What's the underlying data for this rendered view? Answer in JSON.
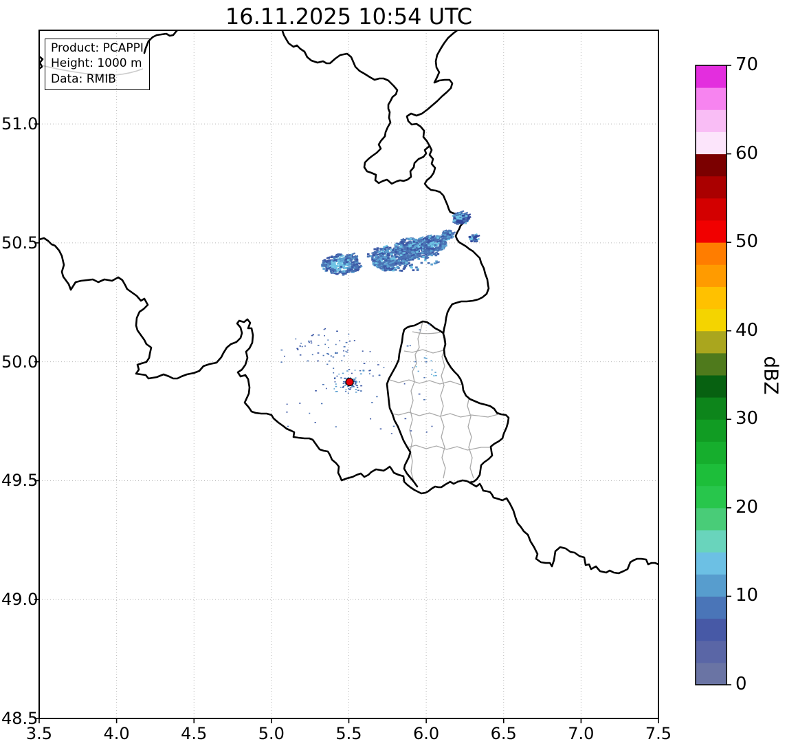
{
  "title": "16.11.2025 10:54 UTC",
  "legend": {
    "lines": [
      "Product: PCAPPI",
      "Height: 1000 m",
      "Data: RMIB"
    ]
  },
  "axes": {
    "xtick_labels": [
      "3.5",
      "4.0",
      "4.5",
      "5.0",
      "5.5",
      "6.0",
      "6.5",
      "7.0",
      "7.5"
    ],
    "xticks": [
      3.5,
      4.0,
      4.5,
      5.0,
      5.5,
      6.0,
      6.5,
      7.0,
      7.5
    ],
    "ytick_labels": [
      "48.5",
      "49.0",
      "49.5",
      "50.0",
      "50.5",
      "51.0"
    ],
    "yticks": [
      48.5,
      49.0,
      49.5,
      50.0,
      50.5,
      51.0
    ],
    "xlim": [
      3.5,
      7.5
    ],
    "ylim": [
      48.5,
      51.394
    ]
  },
  "colorbar": {
    "label": "dBZ",
    "ticks": [
      0,
      10,
      20,
      30,
      40,
      50,
      60,
      70
    ],
    "vmin": 0,
    "vmax": 70,
    "band_step": 2.5,
    "colors_bottom_to_top": [
      "#6a74a4",
      "#5a66a6",
      "#4759a6",
      "#4a75b8",
      "#579dce",
      "#6cc0e4",
      "#69d4bc",
      "#49cc78",
      "#28c64c",
      "#1dbe3a",
      "#16ae2d",
      "#119c23",
      "#0d851b",
      "#076111",
      "#4f7a1c",
      "#aaa61e",
      "#f4d400",
      "#ffc100",
      "#ff9b00",
      "#ff7d00",
      "#f10000",
      "#d30000",
      "#aa0000",
      "#7b0000",
      "#fce5fb",
      "#f9bdf5",
      "#f784f0",
      "#e32ede"
    ]
  },
  "chart_data": {
    "type": "heatmap",
    "title": "16.11.2025 10:54 UTC",
    "product": "PCAPPI",
    "height_m": 1000,
    "data_source": "RMIB",
    "units": "dBZ",
    "lon_range": [
      3.5,
      7.5
    ],
    "lat_range": [
      48.5,
      51.394
    ],
    "station_marker": {
      "lon": 5.505,
      "lat": 49.915,
      "color": "#e8000b",
      "edge": "#000000",
      "radius_px": 5.5
    },
    "echo_clusters": [
      {
        "lon": 5.444,
        "lat": 50.413,
        "rlon": 0.125,
        "rlat": 0.044,
        "n": 280,
        "palette": "main",
        "cores": [
          {
            "dx": -0.1,
            "dy": 0.1,
            "r": 0.45,
            "color": "#6fc4e4"
          }
        ]
      },
      {
        "lon": 5.755,
        "lat": 50.436,
        "rlon": 0.115,
        "rlat": 0.05,
        "n": 320,
        "palette": "main",
        "cores": [
          {
            "dx": -0.2,
            "dy": 0.0,
            "r": 0.4,
            "color": "#5b9fd0"
          }
        ]
      },
      {
        "lon": 5.91,
        "lat": 50.479,
        "rlon": 0.125,
        "rlat": 0.046,
        "n": 360,
        "palette": "main",
        "cores": [
          {
            "dx": 0.1,
            "dy": -0.2,
            "r": 0.38,
            "color": "#6fc4e4"
          }
        ]
      },
      {
        "lon": 6.043,
        "lat": 50.502,
        "rlon": 0.08,
        "rlat": 0.034,
        "n": 220,
        "palette": "main",
        "cores": [
          {
            "dx": 0.0,
            "dy": 0.2,
            "r": 0.35,
            "color": "#6fc4e4"
          }
        ]
      },
      {
        "lon": 6.132,
        "lat": 50.537,
        "rlon": 0.04,
        "rlat": 0.02,
        "n": 75,
        "palette": "main",
        "cores": []
      },
      {
        "lon": 6.212,
        "lat": 50.606,
        "rlon": 0.058,
        "rlat": 0.024,
        "n": 140,
        "palette": "dark",
        "cores": [
          {
            "dx": 0.0,
            "dy": 0.0,
            "r": 0.45,
            "color": "#6fc4e4"
          }
        ]
      },
      {
        "lon": 6.301,
        "lat": 50.523,
        "rlon": 0.031,
        "rlat": 0.015,
        "n": 30,
        "palette": "dark",
        "cores": []
      },
      {
        "lon": 5.845,
        "lat": 50.445,
        "rlon": 0.245,
        "rlat": 0.06,
        "n": 130,
        "palette": "main",
        "cores": []
      }
    ],
    "palettes": {
      "main": [
        [
          "#4a73b4",
          4
        ],
        [
          "#3d59a6",
          3
        ],
        [
          "#5b9fd0",
          2
        ],
        [
          "#6fc4e4",
          1
        ]
      ],
      "dark": [
        [
          "#32489c",
          4
        ],
        [
          "#4a73b4",
          3
        ],
        [
          "#6fc4e4",
          2
        ]
      ]
    },
    "speckle_fields": [
      {
        "lon_min": 5.05,
        "lon_max": 6.05,
        "lat_min": 49.7,
        "lat_max": 50.16,
        "n": 60,
        "colors": [
          "#3d59a6",
          "#4a73b4"
        ]
      },
      {
        "lon_min": 5.15,
        "lon_max": 5.55,
        "lat_min": 50.0,
        "lat_max": 50.12,
        "n": 40,
        "colors": [
          "#3d59a6",
          "#4a73b4"
        ]
      },
      {
        "lon_min": 5.4,
        "lon_max": 5.62,
        "lat_min": 49.87,
        "lat_max": 49.97,
        "n": 45,
        "colors": [
          "#3d59a6",
          "#4a73b4",
          "#5b9fd0"
        ]
      },
      {
        "lon_min": 5.46,
        "lon_max": 5.55,
        "lat_min": 49.895,
        "lat_max": 49.935,
        "n": 40,
        "colors": [
          "#4a73b4",
          "#5b9fd0",
          "#3d59a6"
        ]
      },
      {
        "lon_min": 5.93,
        "lon_max": 6.06,
        "lat_min": 49.94,
        "lat_max": 50.02,
        "n": 10,
        "colors": [
          "#5b9fd0",
          "#6fc4e4"
        ]
      }
    ]
  }
}
